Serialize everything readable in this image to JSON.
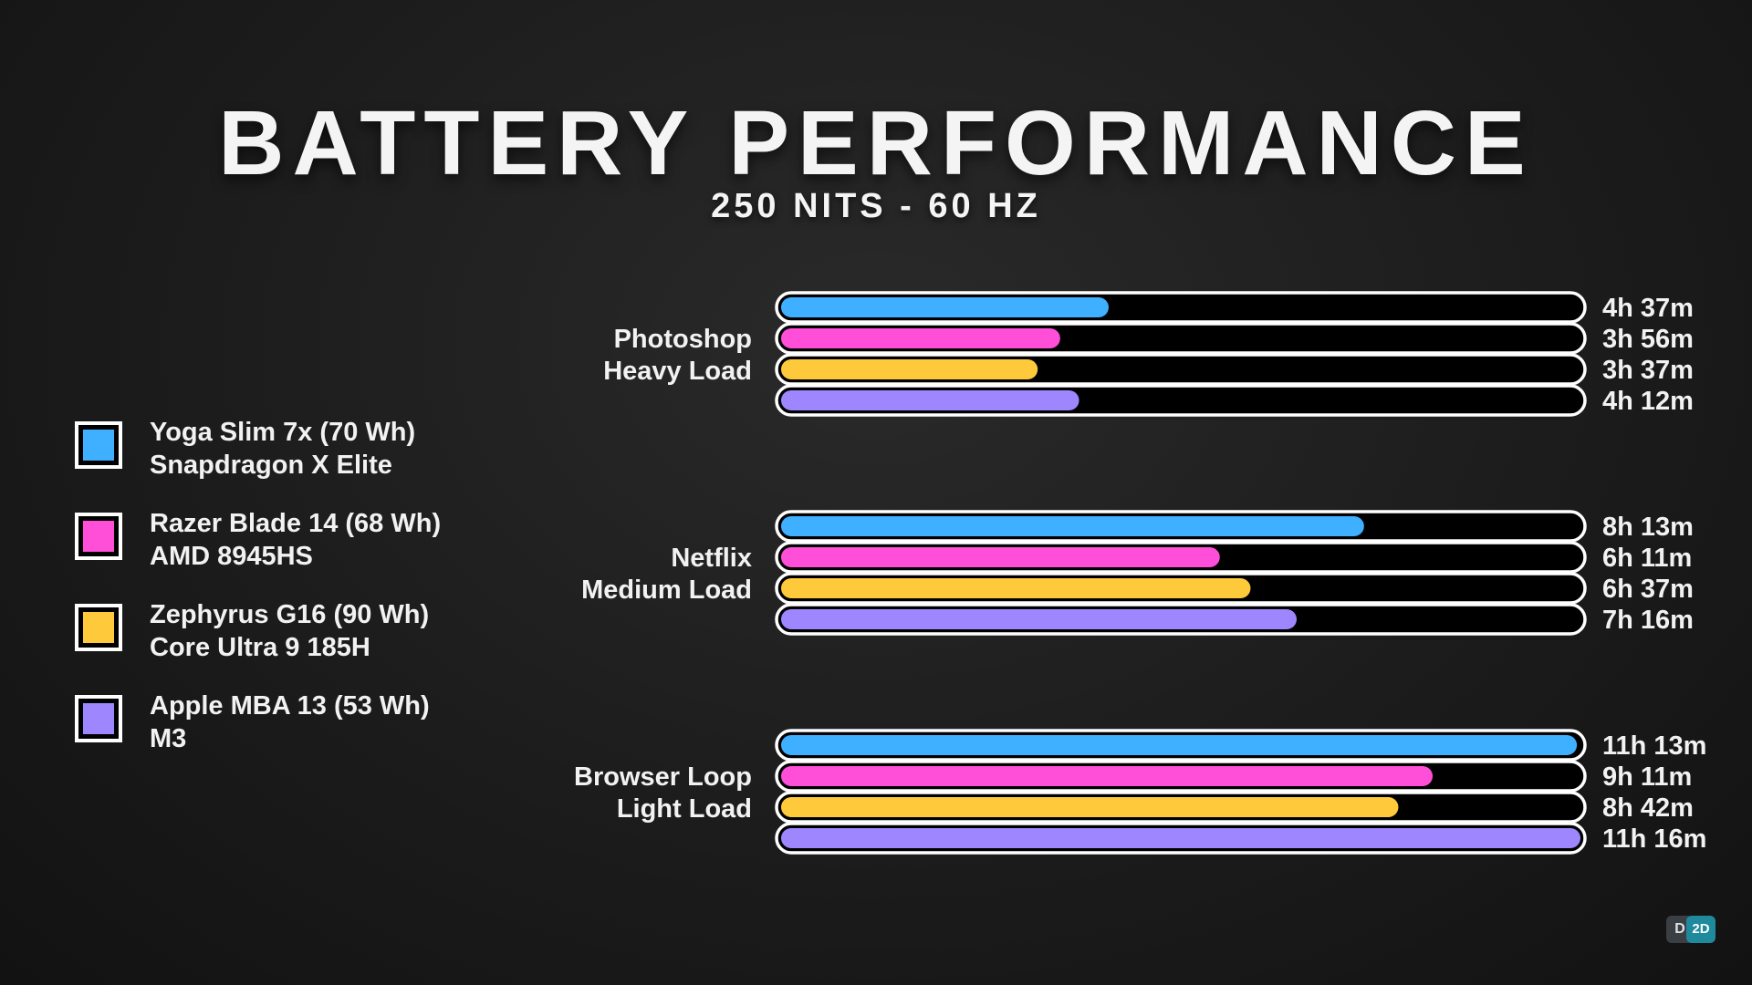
{
  "header": {
    "title": "BATTERY PERFORMANCE",
    "subtitle": "250 NITS - 60 HZ"
  },
  "legend": [
    {
      "line1": "Yoga Slim 7x (70 Wh)",
      "line2": "Snapdragon X Elite",
      "color": "#3fb0ff"
    },
    {
      "line1": "Razer Blade 14 (68 Wh)",
      "line2": "AMD 8945HS",
      "color": "#ff4fd8"
    },
    {
      "line1": "Zephyrus G16 (90 Wh)",
      "line2": "Core Ultra 9 185H",
      "color": "#ffc93c"
    },
    {
      "line1": "Apple MBA 13 (53 Wh)",
      "line2": "M3",
      "color": "#9e86ff"
    }
  ],
  "logo": {
    "left": "D",
    "right": "2D"
  },
  "chart_data": {
    "type": "bar",
    "orientation": "horizontal",
    "title": "BATTERY PERFORMANCE",
    "subtitle": "250 NITS - 60 HZ",
    "unit": "minutes",
    "xlim": [
      0,
      676
    ],
    "series_names": [
      "Yoga Slim 7x (70 Wh)",
      "Razer Blade 14 (68 Wh)",
      "Zephyrus G16 (90 Wh)",
      "Apple MBA 13 (53 Wh)"
    ],
    "series_colors": [
      "#3fb0ff",
      "#ff4fd8",
      "#ffc93c",
      "#9e86ff"
    ],
    "groups": [
      {
        "label_line1": "Photoshop",
        "label_line2": "Heavy Load",
        "values": [
          277,
          236,
          217,
          252
        ],
        "labels": [
          "4h 37m",
          "3h 56m",
          "3h 37m",
          "4h 12m"
        ]
      },
      {
        "label_line1": "Netflix",
        "label_line2": "Medium Load",
        "values": [
          493,
          371,
          397,
          436
        ],
        "labels": [
          "8h 13m",
          "6h 11m",
          "6h 37m",
          "7h 16m"
        ]
      },
      {
        "label_line1": "Browser Loop",
        "label_line2": "Light Load",
        "values": [
          673,
          551,
          522,
          676
        ],
        "labels": [
          "11h 13m",
          "9h 11m",
          "8h 42m",
          "11h 16m"
        ]
      }
    ]
  }
}
